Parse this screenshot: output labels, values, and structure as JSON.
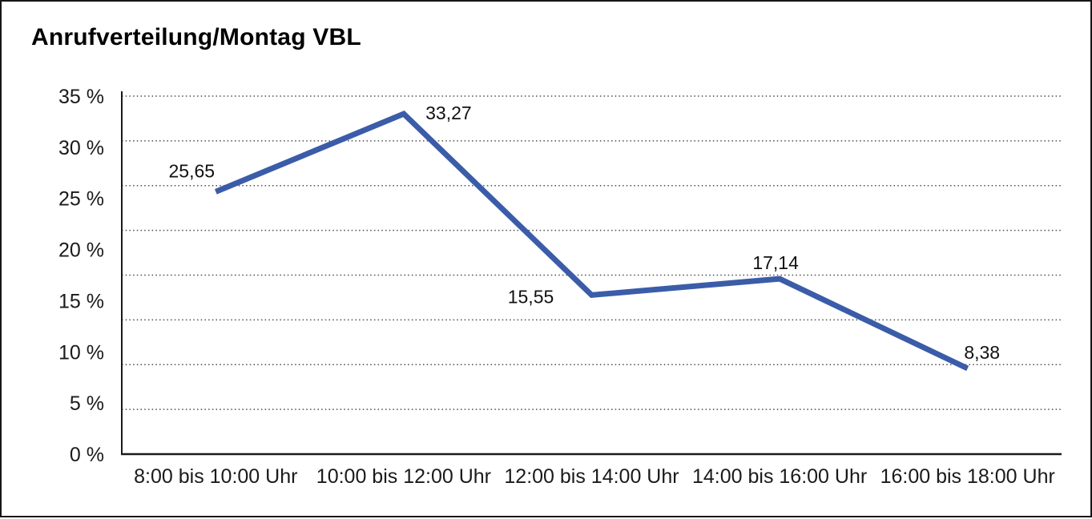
{
  "header": {
    "title": "Anrufverteilung/Montag VBL"
  },
  "chart_data": {
    "type": "line",
    "title": "Anrufverteilung/Montag VBL",
    "categories": [
      "8:00 bis 10:00 Uhr",
      "10:00 bis 12:00 Uhr",
      "12:00 bis 14:00 Uhr",
      "14:00 bis 16:00 Uhr",
      "16:00 bis 18:00 Uhr"
    ],
    "series": [
      {
        "name": "Anrufverteilung Montag VBL",
        "values": [
          25.65,
          33.27,
          15.55,
          17.14,
          8.38
        ],
        "point_labels": [
          "25,65",
          "33,27",
          "15,55",
          "17,14",
          "8,38"
        ]
      }
    ],
    "xlabel": "",
    "ylabel": "",
    "ylim": [
      0,
      35
    ],
    "ytick_step": 5,
    "ytick_labels": [
      "35 %",
      "30 %",
      "25 %",
      "20 %",
      "15 %",
      "10 %",
      "5 %",
      "0 %"
    ],
    "grid": "horizontal-dotted",
    "legend": "none",
    "line_color": "#3b5ca8",
    "axis_color": "#1a1a1a",
    "gridline_color": "#4d4d4d",
    "label_color": "#111111"
  }
}
